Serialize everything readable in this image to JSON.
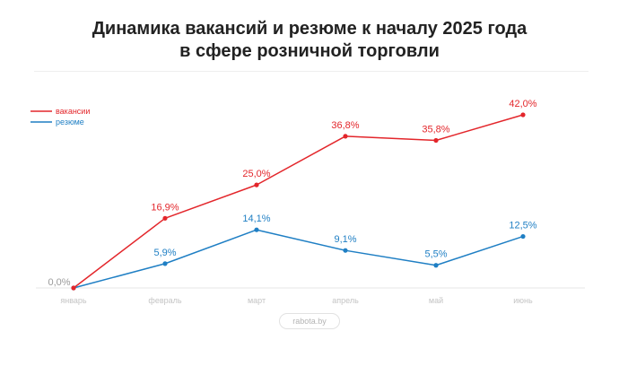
{
  "title_line1": "Динамика вакансий и резюме к началу 2025 года",
  "title_line2": "в сфере розничной торговли",
  "source": "rabota.by",
  "colors": {
    "vacancies": "#e3262b",
    "resumes": "#1f7fc4",
    "axis": "#e6e6e6",
    "tick": "#c4c4c4"
  },
  "chart_data": {
    "type": "line",
    "categories": [
      "январь",
      "февраль",
      "март",
      "апрель",
      "май",
      "июнь"
    ],
    "legend_position": "top-left",
    "grid": false,
    "ylim": [
      0,
      45
    ],
    "series": [
      {
        "name": "вакансии",
        "values": [
          0.0,
          16.9,
          25.0,
          36.8,
          35.8,
          42.0
        ],
        "labels": [
          "0,0%",
          "16,9%",
          "25,0%",
          "36,8%",
          "35,8%",
          "42,0%"
        ]
      },
      {
        "name": "резюме",
        "values": [
          0.0,
          5.9,
          14.1,
          9.1,
          5.5,
          12.5
        ],
        "labels": [
          "0,0%",
          "5,9%",
          "14,1%",
          "9,1%",
          "5,5%",
          "12,5%"
        ]
      }
    ]
  }
}
